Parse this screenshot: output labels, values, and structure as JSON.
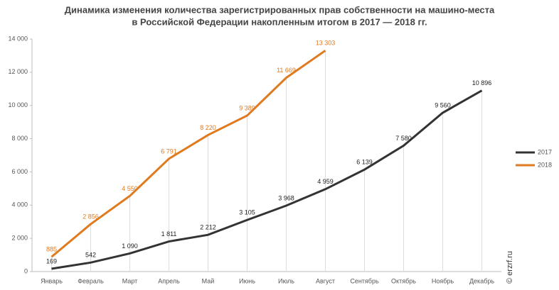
{
  "chart_data": {
    "type": "line",
    "title": [
      "Динамика изменения количества зарегистрированных прав собственности на машино-места",
      "в Российской Федерации накопленным итогом в 2017 — 2018 гг."
    ],
    "categories": [
      "Январь",
      "Февраль",
      "Март",
      "Апрель",
      "Май",
      "Июнь",
      "Июль",
      "Август",
      "Сентябрь",
      "Октябрь",
      "Ноябрь",
      "Декабрь"
    ],
    "series": [
      {
        "name": "2017",
        "color": "#333333",
        "values": [
          169,
          542,
          1090,
          1811,
          2212,
          3105,
          3968,
          4959,
          6139,
          7580,
          9560,
          10896
        ],
        "value_labels": [
          "169",
          "542",
          "1 090",
          "1 811",
          "2 212",
          "3 105",
          "3 968",
          "4 959",
          "6 139",
          "7 580",
          "9 560",
          "10 896"
        ]
      },
      {
        "name": "2018",
        "color": "#e07a1f",
        "values": [
          885,
          2856,
          4550,
          6791,
          8220,
          9389,
          11669,
          13303,
          null,
          null,
          null,
          null
        ],
        "value_labels": [
          "885",
          "2 856",
          "4 550",
          "6 791",
          "8 220",
          "9 389",
          "11 669",
          "13 303",
          null,
          null,
          null,
          null
        ]
      }
    ],
    "ylim": [
      0,
      14000
    ],
    "yticks": [
      0,
      {
        "value": 2000,
        "label": "2 000"
      },
      {
        "value": 4000,
        "label": "4 000"
      },
      {
        "value": 6000,
        "label": "6 000"
      },
      {
        "value": 8000,
        "label": "8 000"
      },
      {
        "value": 10000,
        "label": "10 000"
      },
      {
        "value": 12000,
        "label": "12 000"
      },
      {
        "value": 14000,
        "label": "14 000"
      }
    ],
    "legend": "right",
    "watermark": "© erzrf.ru"
  }
}
